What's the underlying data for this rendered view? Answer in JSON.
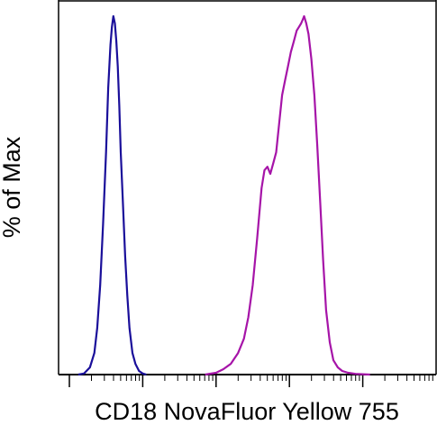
{
  "chart_data": {
    "type": "line",
    "title": "",
    "xlabel": "CD18 NovaFluor Yellow 755",
    "ylabel": "% of Max",
    "x_scale": "log",
    "xlim_decades": 5,
    "ylim": [
      0,
      100
    ],
    "grid": false,
    "legend": "none",
    "series": [
      {
        "color": "#1a0f9a",
        "x": [
          0.12,
          0.2,
          0.28,
          0.34,
          0.38,
          0.42,
          0.46,
          0.5,
          0.53,
          0.56,
          0.58,
          0.6,
          0.62,
          0.64,
          0.66,
          0.68,
          0.7,
          0.73,
          0.76,
          0.79,
          0.82,
          0.86,
          0.9,
          0.95,
          1.0,
          1.05
        ],
        "values": [
          0,
          0.3,
          2,
          6,
          13,
          25,
          42,
          62,
          80,
          92,
          97,
          100,
          98,
          93,
          86,
          75,
          62,
          48,
          33,
          22,
          13,
          6,
          3,
          1,
          0.3,
          0
        ]
      },
      {
        "color": "#a614a8",
        "x": [
          1.85,
          2.0,
          2.1,
          2.2,
          2.3,
          2.38,
          2.44,
          2.5,
          2.56,
          2.62,
          2.66,
          2.7,
          2.74,
          2.78,
          2.82,
          2.86,
          2.9,
          2.94,
          2.98,
          3.02,
          3.06,
          3.1,
          3.13,
          3.16,
          3.18,
          3.2,
          3.23,
          3.26,
          3.3,
          3.34,
          3.38,
          3.42,
          3.46,
          3.5,
          3.55,
          3.6,
          3.66,
          3.72,
          3.8,
          3.9,
          4.0,
          4.1
        ],
        "values": [
          0,
          0.5,
          1.5,
          3,
          6,
          10,
          16,
          25,
          38,
          52,
          57,
          58,
          56,
          59,
          62,
          70,
          78,
          82,
          86,
          90,
          93,
          96,
          97,
          98,
          99,
          100,
          98,
          95,
          88,
          78,
          64,
          48,
          32,
          18,
          9,
          4,
          2,
          1,
          0.5,
          0.2,
          0.1,
          0
        ]
      }
    ]
  }
}
